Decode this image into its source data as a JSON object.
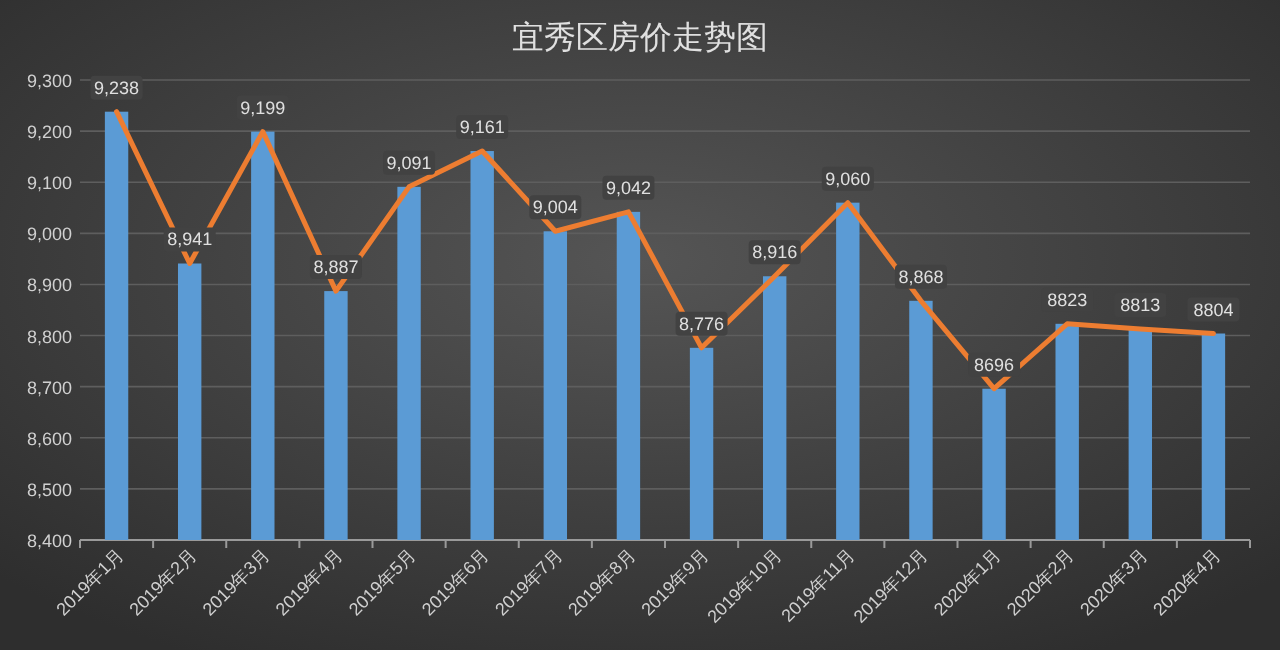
{
  "chart_data": {
    "type": "bar",
    "title": "宜秀区房价走势图",
    "categories": [
      "2019年1月",
      "2019年2月",
      "2019年3月",
      "2019年4月",
      "2019年5月",
      "2019年6月",
      "2019年7月",
      "2019年8月",
      "2019年9月",
      "2019年10月",
      "2019年11月",
      "2019年12月",
      "2020年1月",
      "2020年2月",
      "2020年3月",
      "2020年4月"
    ],
    "series": [
      {
        "color": "#5b9bd5",
        "values": [
          9238,
          8941,
          9199,
          8887,
          9091,
          9161,
          9004,
          9042,
          8776,
          8916,
          9060,
          8868,
          8696,
          8823,
          8813,
          8804
        ]
      },
      {
        "type": "line",
        "color": "#ed7d31",
        "marker": "none",
        "values": [
          9238,
          8941,
          9199,
          8887,
          9091,
          9161,
          9004,
          9042,
          8776,
          8916,
          9060,
          8868,
          8696,
          8823,
          8813,
          8804
        ],
        "value_labels": [
          "9,238",
          "8,941",
          "9,199",
          "8,887",
          "9,091",
          "9,161",
          "9,004",
          "9,042",
          "8,776",
          "8,916",
          "9,060",
          "8,868",
          "8696",
          "8823",
          "8813",
          "8804"
        ]
      }
    ],
    "ylim": [
      8400,
      9300
    ],
    "yticks": [
      {
        "value": 8400,
        "label": "8,400"
      },
      {
        "value": 8500,
        "label": "8,500"
      },
      {
        "value": 8600,
        "label": "8,600"
      },
      {
        "value": 8700,
        "label": "8,700"
      },
      {
        "value": 8800,
        "label": "8,800"
      },
      {
        "value": 8900,
        "label": "8,900"
      },
      {
        "value": 9000,
        "label": "9,000"
      },
      {
        "value": 9100,
        "label": "9,100"
      },
      {
        "value": 9200,
        "label": "9,200"
      },
      {
        "value": 9300,
        "label": "9,300"
      }
    ],
    "grid": "y"
  }
}
